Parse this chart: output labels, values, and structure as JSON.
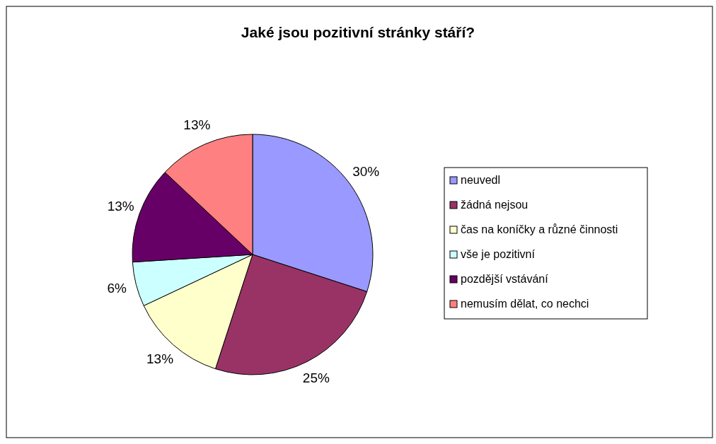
{
  "chart_data": {
    "type": "pie",
    "title": "Jaké jsou pozitivní stránky stáří?",
    "categories": [
      "neuvedl",
      "žádná nejsou",
      "čas na koníčky a různé činnosti",
      "vše je pozitivní",
      "pozdější vstávání",
      "nemusím dělat, co nechci"
    ],
    "values": [
      30,
      25,
      13,
      6,
      13,
      13
    ],
    "value_labels": [
      "30%",
      "25%",
      "13%",
      "6%",
      "13%",
      "13%"
    ],
    "colors": [
      "#9999ff",
      "#993366",
      "#ffffcc",
      "#ccffff",
      "#660066",
      "#ff8080"
    ],
    "legend": "right"
  }
}
